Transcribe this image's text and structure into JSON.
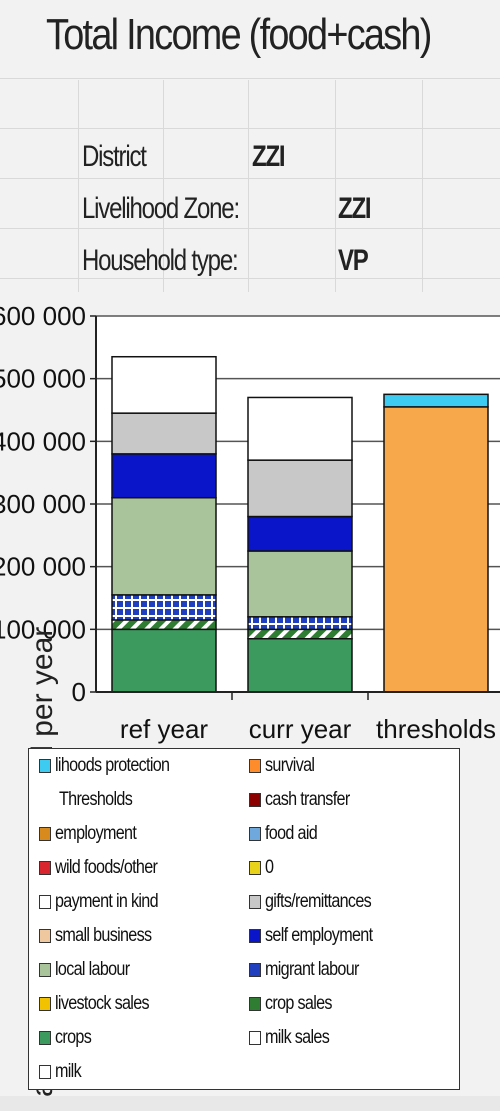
{
  "sheet": {
    "title": "Total Income (food+cash)",
    "district_label": "District",
    "district_value": "ZZI",
    "livelihood_zone_label": "Livelihood Zone:",
    "livelihood_zone_value": "ZZI",
    "household_type_label": "Household type:",
    "household_type_value": "VP"
  },
  "chart_data": {
    "type": "bar",
    "stacked": true,
    "categories": [
      "ref year",
      "curr year",
      "thresholds"
    ],
    "ylabel": "cash income per household per year",
    "ylim": [
      0,
      600000
    ],
    "yticks": [
      0,
      100000,
      200000,
      300000,
      400000,
      500000,
      600000
    ],
    "ytick_labels": [
      "0",
      "100 000",
      "200 000",
      "300 000",
      "400 000",
      "500 000",
      "600 000"
    ],
    "grid": true,
    "legend_position": "bottom",
    "series": [
      {
        "name": "crops",
        "color": "#3c9a5f",
        "values": [
          100000,
          85000,
          0
        ]
      },
      {
        "name": "crop sales",
        "color": "#2e7d32",
        "pattern": "diagonal",
        "values": [
          15000,
          15000,
          0
        ]
      },
      {
        "name": "migrant labour",
        "color": "#1f3fbf",
        "pattern": "checker",
        "values": [
          40000,
          20000,
          0
        ]
      },
      {
        "name": "local labour",
        "color": "#a9c49a",
        "values": [
          155000,
          105000,
          0
        ]
      },
      {
        "name": "self employment",
        "color": "#0a14c8",
        "values": [
          70000,
          55000,
          0
        ]
      },
      {
        "name": "gifts/remittances",
        "color": "#c8c8c8",
        "values": [
          65000,
          90000,
          0
        ]
      },
      {
        "name": "payment in kind",
        "color": "#ffffff",
        "values": [
          90000,
          100000,
          0
        ]
      },
      {
        "name": "survival",
        "color": "#f7a84a",
        "values": [
          0,
          0,
          455000
        ]
      },
      {
        "name": "lihoods protection Thresholds",
        "color": "#3ecbf2",
        "values": [
          0,
          0,
          20000
        ]
      }
    ]
  },
  "legend": {
    "items": [
      {
        "label": "lihoods protection",
        "color": "#3ecbf2"
      },
      {
        "label": "survival",
        "color": "#ff8c2a"
      },
      {
        "label": "Thresholds",
        "color": ""
      },
      {
        "label": "cash transfer",
        "color": "#8b0000"
      },
      {
        "label": "employment",
        "color": "#d98a1c"
      },
      {
        "label": "food aid",
        "color": "#6fa8dc"
      },
      {
        "label": "wild foods/other",
        "color": "#d9262e"
      },
      {
        "label": "0",
        "color": "#e8d21a"
      },
      {
        "label": "payment in kind",
        "color": "#ffffff"
      },
      {
        "label": "gifts/remittances",
        "color": "#c8c8c8"
      },
      {
        "label": "small business",
        "color": "#f0c8a0"
      },
      {
        "label": "self employment",
        "color": "#0a14c8"
      },
      {
        "label": "local labour",
        "color": "#a9c49a"
      },
      {
        "label": "migrant labour",
        "color": "#1f3fbf"
      },
      {
        "label": "livestock sales",
        "color": "#f2c200"
      },
      {
        "label": "crop sales",
        "color": "#2e7d32"
      },
      {
        "label": "crops",
        "color": "#3c9a5f"
      },
      {
        "label": "milk sales",
        "color": "#ffffff"
      },
      {
        "label": "milk",
        "color": "#ffffff"
      }
    ]
  }
}
